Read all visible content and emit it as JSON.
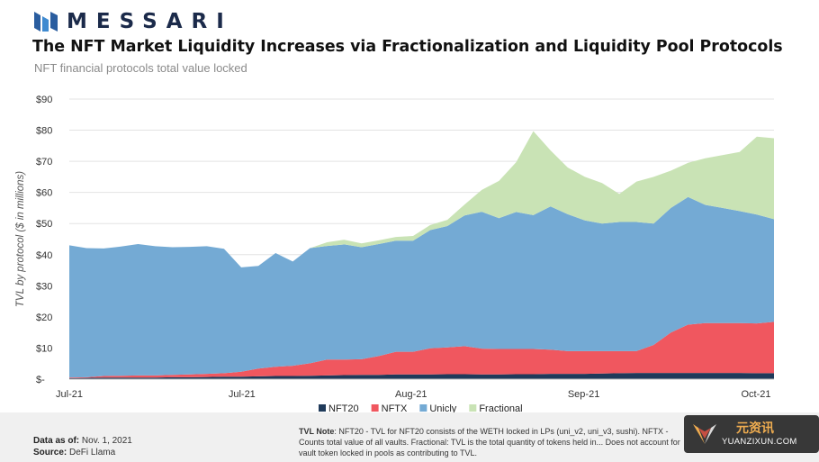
{
  "brand": {
    "name": "MESSARI"
  },
  "title": "The NFT Market Liquidity Increases via Fractionalization and Liquidity Pool Protocols",
  "subtitle": "NFT financial protocols total value locked",
  "chart_data": {
    "type": "area",
    "stacked": true,
    "ylabel": "TVL by protocol ($ in millions)",
    "ylim": [
      0,
      90
    ],
    "yticks": [
      "$-",
      "$10",
      "$20",
      "$30",
      "$40",
      "$50",
      "$60",
      "$70",
      "$80",
      "$90"
    ],
    "xtick_labels": [
      "Jul-21",
      "Jul-21",
      "Aug-21",
      "Sep-21",
      "Oct-21"
    ],
    "grid": true,
    "legend_position": "bottom",
    "colors": {
      "NFT20": "#1f3a5a",
      "NFTX": "#f0575f",
      "Unicly": "#74aad4",
      "Fractional": "#c9e3b5"
    },
    "x": [
      "Jul-01",
      "Jul-05",
      "Jul-10",
      "Jul-14",
      "Jul-16",
      "Jul-18",
      "Jul-19",
      "Jul-21",
      "Jul-23",
      "Jul-26",
      "Jul-29",
      "Aug-01",
      "Aug-04",
      "Aug-07",
      "Aug-10",
      "Aug-13",
      "Aug-16",
      "Aug-19",
      "Aug-22",
      "Aug-25",
      "Aug-28",
      "Aug-31",
      "Sep-03",
      "Sep-06",
      "Sep-09",
      "Sep-12",
      "Sep-15",
      "Sep-18",
      "Sep-21",
      "Sep-24",
      "Sep-27",
      "Sep-30",
      "Oct-03",
      "Oct-06",
      "Oct-09",
      "Oct-12",
      "Oct-15",
      "Oct-18",
      "Oct-21",
      "Oct-24",
      "Oct-27",
      "Oct-30"
    ],
    "series": [
      {
        "name": "NFT20",
        "values": [
          0.3,
          0.4,
          0.5,
          0.5,
          0.5,
          0.5,
          0.6,
          0.6,
          0.7,
          0.8,
          0.8,
          0.9,
          1.0,
          1.0,
          1.1,
          1.2,
          1.3,
          1.4,
          1.4,
          1.5,
          1.5,
          1.5,
          1.6,
          1.6,
          1.5,
          1.5,
          1.6,
          1.6,
          1.7,
          1.7,
          1.7,
          1.8,
          1.9,
          2.0,
          2.0,
          2.0,
          2.0,
          2.0,
          2.0,
          2.0,
          1.9,
          1.9
        ]
      },
      {
        "name": "NFTX",
        "values": [
          0.2,
          0.2,
          0.5,
          0.6,
          0.7,
          0.7,
          0.8,
          0.9,
          1.0,
          1.1,
          1.6,
          2.5,
          3.0,
          3.3,
          4.0,
          5.1,
          5.0,
          5.0,
          6.0,
          7.3,
          7.3,
          8.4,
          8.6,
          9.0,
          8.3,
          8.2,
          8.1,
          8.1,
          7.8,
          7.3,
          7.3,
          7.2,
          7.1,
          7.0,
          9.0,
          13.0,
          15.5,
          16.0,
          16.0,
          16.0,
          16.0,
          16.5
        ]
      },
      {
        "name": "Unicly",
        "values": [
          42.5,
          41.5,
          41.0,
          41.5,
          42.2,
          41.5,
          41.0,
          41.0,
          41.0,
          40.0,
          33.5,
          33.0,
          36.5,
          33.5,
          37.0,
          36.5,
          37.0,
          36.0,
          36.0,
          35.7,
          35.7,
          38.0,
          39.0,
          42.0,
          44.0,
          42.0,
          44.0,
          43.0,
          46.0,
          44.0,
          42.0,
          41.0,
          41.5,
          41.5,
          39.0,
          40.0,
          41.0,
          38.0,
          37.0,
          36.0,
          35.0,
          33.0
        ]
      },
      {
        "name": "Fractional",
        "values": [
          0,
          0,
          0,
          0,
          0,
          0,
          0,
          0,
          0,
          0,
          0,
          0,
          0,
          0,
          0,
          1.2,
          1.5,
          1.2,
          1.2,
          1.2,
          1.5,
          1.6,
          2.0,
          3.5,
          7.0,
          12.0,
          16.0,
          27.0,
          18.0,
          15.0,
          14.0,
          13.0,
          9.0,
          13.0,
          15.0,
          12.0,
          11.0,
          15.0,
          17.0,
          19.0,
          25.0,
          26.0
        ]
      }
    ]
  },
  "footer": {
    "data_as_of_label": "Data as of:",
    "data_as_of_value": "Nov. 1, 2021",
    "source_label": "Source:",
    "source_value": "DeFi Llama",
    "note_label": "TVL Note",
    "note_text": ": NFT20 - TVL for NFT20 consists of the WETH locked in LPs (uni_v2, uni_v3, sushi). NFTX - Counts total value of all vaults. Fractional: TVL is the total quantity of tokens held in... Does not account for vault token locked in pools as contributing to TVL."
  },
  "watermark": {
    "cn": "元资讯",
    "en": "YUANZIXUN.COM"
  }
}
